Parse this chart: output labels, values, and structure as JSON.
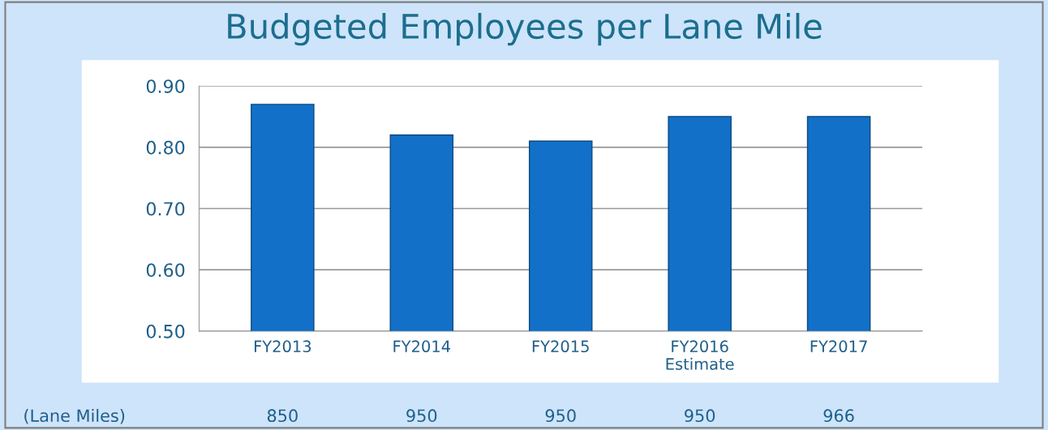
{
  "chart_data": {
    "type": "bar",
    "title": "Budgeted Employees per Lane Mile",
    "categories": [
      "FY2013",
      "FY2014",
      "FY2015",
      "FY2016\nEstimate",
      "FY2017"
    ],
    "values": [
      0.87,
      0.82,
      0.81,
      0.85,
      0.85
    ],
    "color": "#1270c8",
    "ylim": [
      0.5,
      0.9
    ],
    "yticks": [
      {
        "value": 0.5,
        "label": "0.50"
      },
      {
        "value": 0.6,
        "label": "0.60"
      },
      {
        "value": 0.7,
        "label": "0.70"
      },
      {
        "value": 0.8,
        "label": "0.80"
      },
      {
        "value": 0.9,
        "label": "0.90"
      }
    ],
    "grid": "y",
    "annotations": [
      "(Lane Miles)",
      "850",
      "950",
      "950",
      "950",
      "966"
    ]
  }
}
